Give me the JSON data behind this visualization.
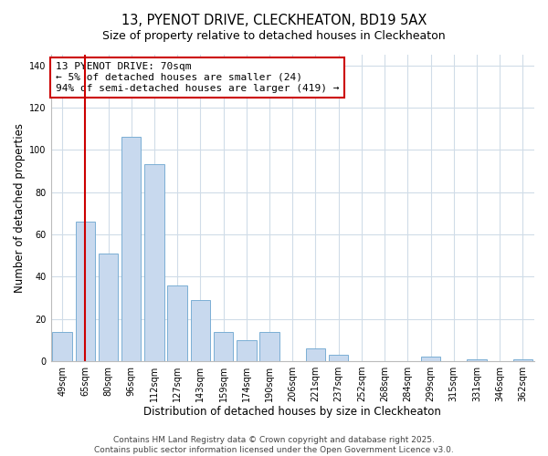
{
  "title": "13, PYENOT DRIVE, CLECKHEATON, BD19 5AX",
  "subtitle": "Size of property relative to detached houses in Cleckheaton",
  "xlabel": "Distribution of detached houses by size in Cleckheaton",
  "ylabel": "Number of detached properties",
  "categories": [
    "49sqm",
    "65sqm",
    "80sqm",
    "96sqm",
    "112sqm",
    "127sqm",
    "143sqm",
    "159sqm",
    "174sqm",
    "190sqm",
    "206sqm",
    "221sqm",
    "237sqm",
    "252sqm",
    "268sqm",
    "284sqm",
    "299sqm",
    "315sqm",
    "331sqm",
    "346sqm",
    "362sqm"
  ],
  "values": [
    14,
    66,
    51,
    106,
    93,
    36,
    29,
    14,
    10,
    14,
    0,
    6,
    3,
    0,
    0,
    0,
    2,
    0,
    1,
    0,
    1
  ],
  "bar_color": "#c8d9ee",
  "bar_edge_color": "#7bafd4",
  "vline_x": 1.0,
  "vline_color": "#cc0000",
  "annotation_line1": "13 PYENOT DRIVE: 70sqm",
  "annotation_line2": "← 5% of detached houses are smaller (24)",
  "annotation_line3": "94% of semi-detached houses are larger (419) →",
  "annotation_box_color": "#cc0000",
  "ylim": [
    0,
    145
  ],
  "yticks": [
    0,
    20,
    40,
    60,
    80,
    100,
    120,
    140
  ],
  "background_color": "#ffffff",
  "grid_color": "#d0dce8",
  "footer_line1": "Contains HM Land Registry data © Crown copyright and database right 2025.",
  "footer_line2": "Contains public sector information licensed under the Open Government Licence v3.0.",
  "title_fontsize": 10.5,
  "subtitle_fontsize": 9,
  "xlabel_fontsize": 8.5,
  "ylabel_fontsize": 8.5,
  "tick_fontsize": 7,
  "annotation_fontsize": 8,
  "footer_fontsize": 6.5
}
